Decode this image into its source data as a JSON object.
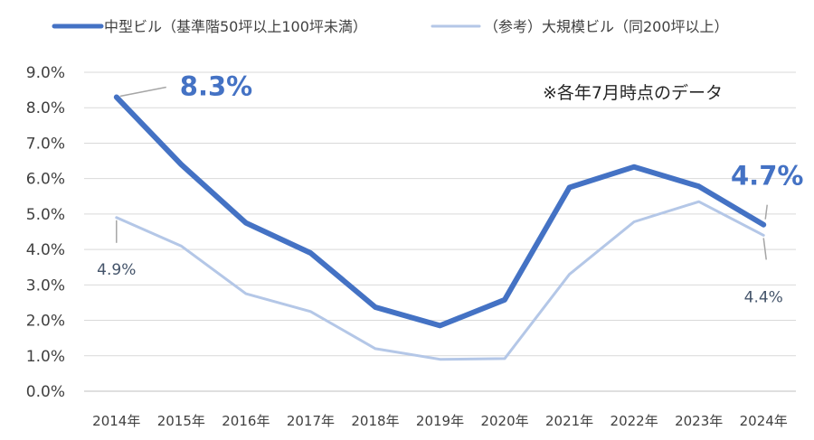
{
  "chart_data": {
    "type": "line",
    "categories": [
      "2014年",
      "2015年",
      "2016年",
      "2017年",
      "2018年",
      "2019年",
      "2020年",
      "2021年",
      "2022年",
      "2023年",
      "2024年"
    ],
    "series": [
      {
        "name": "中型ビル（基準階50坪以上100坪未満）",
        "values": [
          8.3,
          6.4,
          4.75,
          3.9,
          2.37,
          1.85,
          2.58,
          5.75,
          6.33,
          5.78,
          4.7
        ],
        "color": "#4472C4",
        "emphasis": "thick"
      },
      {
        "name": "（参考）大規模ビル（同200坪以上）",
        "values": [
          4.9,
          4.1,
          2.75,
          2.25,
          1.2,
          0.9,
          0.92,
          3.3,
          4.78,
          5.35,
          4.4
        ],
        "color": "#B4C7E7",
        "emphasis": "thin"
      }
    ],
    "yticks": [
      "0.0%",
      "1.0%",
      "2.0%",
      "3.0%",
      "4.0%",
      "5.0%",
      "6.0%",
      "7.0%",
      "8.0%",
      "9.0%"
    ],
    "ylim": [
      0,
      9
    ],
    "grid": true,
    "legend_position": "top",
    "note": "※各年7月時点のデータ",
    "annotations": [
      {
        "series": 0,
        "index": 0,
        "text": "8.3%",
        "style": "bold-large"
      },
      {
        "series": 0,
        "index": 10,
        "text": "4.7%",
        "style": "bold-large"
      },
      {
        "series": 1,
        "index": 0,
        "text": "4.9%",
        "style": "normal"
      },
      {
        "series": 1,
        "index": 10,
        "text": "4.4%",
        "style": "normal"
      }
    ]
  }
}
